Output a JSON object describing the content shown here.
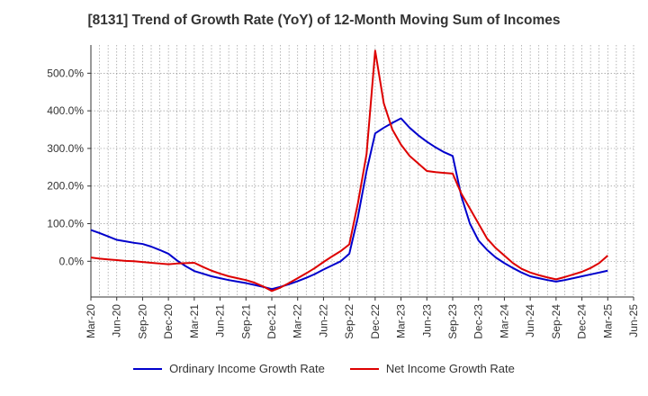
{
  "chart_data": {
    "type": "line",
    "title": "[8131]  Trend of Growth Rate (YoY) of 12-Month Moving Sum of Incomes",
    "xlabel": "",
    "ylabel": "",
    "ylim": [
      -95,
      575
    ],
    "y_ticks": [
      0,
      100,
      200,
      300,
      400,
      500
    ],
    "y_tick_labels": [
      "0.0%",
      "100.0%",
      "200.0%",
      "300.0%",
      "400.0%",
      "500.0%"
    ],
    "x_tick_labels": [
      "Mar-20",
      "Jun-20",
      "Sep-20",
      "Dec-20",
      "Mar-21",
      "Jun-21",
      "Sep-21",
      "Dec-21",
      "Mar-22",
      "Jun-22",
      "Sep-22",
      "Dec-22",
      "Mar-23",
      "Jun-23",
      "Sep-23",
      "Dec-23",
      "Mar-24",
      "Jun-24",
      "Sep-24",
      "Dec-24",
      "Mar-25",
      "Jun-25"
    ],
    "grid": true,
    "legend_position": "bottom",
    "categories": [
      "Mar-20",
      "Apr-20",
      "May-20",
      "Jun-20",
      "Jul-20",
      "Aug-20",
      "Sep-20",
      "Oct-20",
      "Nov-20",
      "Dec-20",
      "Jan-21",
      "Feb-21",
      "Mar-21",
      "Apr-21",
      "May-21",
      "Jun-21",
      "Jul-21",
      "Aug-21",
      "Sep-21",
      "Oct-21",
      "Nov-21",
      "Dec-21",
      "Jan-22",
      "Feb-22",
      "Mar-22",
      "Apr-22",
      "May-22",
      "Jun-22",
      "Jul-22",
      "Aug-22",
      "Sep-22",
      "Oct-22",
      "Nov-22",
      "Dec-22",
      "Jan-23",
      "Feb-23",
      "Mar-23",
      "Apr-23",
      "May-23",
      "Jun-23",
      "Jul-23",
      "Aug-23",
      "Sep-23",
      "Oct-23",
      "Nov-23",
      "Dec-23",
      "Jan-24",
      "Feb-24",
      "Mar-24",
      "Apr-24",
      "May-24",
      "Jun-24",
      "Jul-24",
      "Aug-24",
      "Sep-24",
      "Oct-24",
      "Nov-24",
      "Dec-24",
      "Jan-25",
      "Feb-25",
      "Mar-25"
    ],
    "series": [
      {
        "name": "Ordinary Income Growth Rate",
        "color": "#0000cc",
        "values": [
          83,
          75,
          66,
          57,
          53,
          49,
          46,
          39,
          30,
          20,
          2,
          -13,
          -26,
          -33,
          -40,
          -45,
          -50,
          -54,
          -58,
          -63,
          -68,
          -74,
          -68,
          -61,
          -53,
          -44,
          -34,
          -22,
          -11,
          0,
          20,
          118,
          240,
          340,
          355,
          368,
          380,
          355,
          335,
          318,
          303,
          290,
          280,
          173,
          100,
          55,
          30,
          10,
          -5,
          -18,
          -30,
          -40,
          -45,
          -50,
          -54,
          -50,
          -45,
          -40,
          -35,
          -30,
          -25
        ]
      },
      {
        "name": "Net Income Growth Rate",
        "color": "#dd0000",
        "values": [
          10,
          7,
          5,
          3,
          1,
          0,
          -2,
          -4,
          -6,
          -8,
          -6,
          -5,
          -4,
          -15,
          -25,
          -33,
          -40,
          -45,
          -50,
          -57,
          -67,
          -79,
          -70,
          -58,
          -45,
          -32,
          -18,
          -2,
          13,
          27,
          45,
          155,
          285,
          560,
          420,
          350,
          310,
          280,
          260,
          240,
          237,
          235,
          233,
          180,
          140,
          100,
          60,
          35,
          15,
          -5,
          -20,
          -30,
          -37,
          -43,
          -48,
          -42,
          -35,
          -28,
          -18,
          -5,
          15
        ]
      }
    ]
  }
}
